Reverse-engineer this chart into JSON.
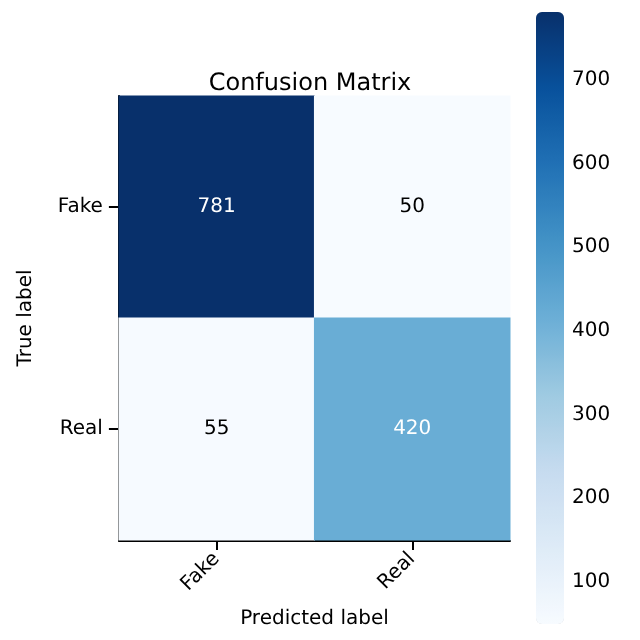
{
  "chart_data": {
    "type": "heatmap",
    "title": "Confusion Matrix",
    "xlabel": "Predicted label",
    "ylabel": "True label",
    "categories": [
      "Fake",
      "Real"
    ],
    "y_categories": [
      "Fake",
      "Real"
    ],
    "cells": [
      [
        781,
        50
      ],
      [
        55,
        420
      ]
    ],
    "data_labels": true,
    "clim": [
      50,
      781
    ],
    "cticks": [
      100,
      200,
      300,
      400,
      500,
      600,
      700
    ]
  }
}
